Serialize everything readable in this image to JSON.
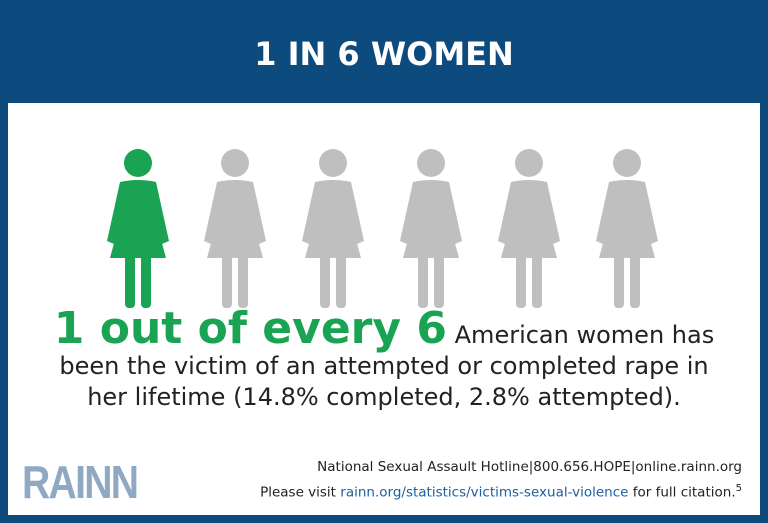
{
  "header": {
    "title": "1 IN 6 WOMEN"
  },
  "statement": {
    "highlight": "1 out of every 6",
    "lines": [
      "American women has",
      "been the victim of an attempted or completed rape in",
      "her lifetime (14.8% completed, 2.8% attempted)."
    ]
  },
  "logo": "RAINN",
  "footer": {
    "hotline": "National Sexual Assault Hotline|800.656.HOPE|online.rainn.org",
    "citation_prefix": "Please visit",
    "citation_link": "rainn.org/statistics/victims-sexual-violence",
    "citation_suffix": "for full citation.",
    "footnote": "5"
  }
}
